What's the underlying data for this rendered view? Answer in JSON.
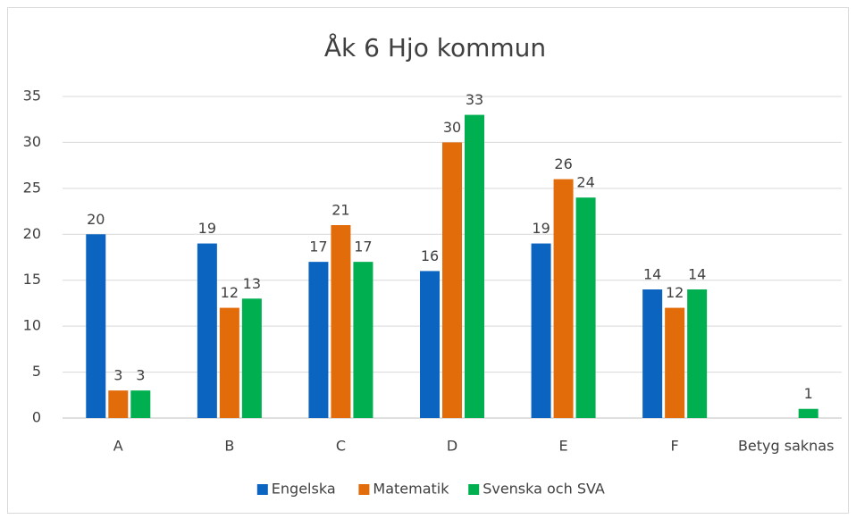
{
  "chart_data": {
    "type": "bar",
    "title": "Åk 6 Hjo kommun",
    "categories": [
      "A",
      "B",
      "C",
      "D",
      "E",
      "F",
      "Betyg saknas"
    ],
    "series": [
      {
        "name": "Engelska",
        "color": "#0a64c0",
        "values": [
          20,
          19,
          17,
          16,
          19,
          14,
          null
        ]
      },
      {
        "name": "Matematik",
        "color": "#e36c0a",
        "values": [
          3,
          12,
          21,
          30,
          26,
          12,
          null
        ]
      },
      {
        "name": "Svenska och SVA",
        "color": "#00b050",
        "values": [
          3,
          13,
          17,
          33,
          24,
          14,
          1
        ]
      }
    ],
    "ylim": [
      0,
      35
    ],
    "yticks": [
      0,
      5,
      10,
      15,
      20,
      25,
      30,
      35
    ],
    "grid": true,
    "legend": "bottom"
  }
}
